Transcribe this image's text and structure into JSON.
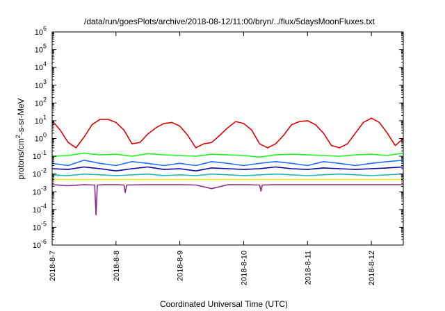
{
  "chart_data": {
    "type": "line",
    "title": "/data/run/goesPlots/archive/2018-08-12/11:00/bryn/../flux/5daysMoonFluxes.txt",
    "xlabel": "Coordinated Universal Time (UTC)",
    "ylabel": {
      "pre": "protons/cm",
      "sup": "2",
      "post": "-s-sr-MeV"
    },
    "yscale": "log",
    "ylim": [
      1e-06,
      1000000.0
    ],
    "y_ticks": [
      {
        "exp": "-6"
      },
      {
        "exp": "-5"
      },
      {
        "exp": "-4"
      },
      {
        "exp": "-3"
      },
      {
        "exp": "-2"
      },
      {
        "exp": "-1"
      },
      {
        "exp": "0"
      },
      {
        "exp": "1"
      },
      {
        "exp": "2"
      },
      {
        "exp": "3"
      },
      {
        "exp": "4"
      },
      {
        "exp": "5"
      },
      {
        "exp": "6"
      }
    ],
    "y_tick_base": "10",
    "xlim": [
      "2018-08-07T00:00",
      "2018-08-12T12:00"
    ],
    "x_ticks": [
      "2018-8-7",
      "2018-8-8",
      "2018-8-9",
      "2018-8-10",
      "2018-8-11",
      "2018-8-12"
    ],
    "grid": false,
    "legend": "none",
    "series": [
      {
        "color": "#e00000",
        "x": [
          "2018-08-07T00:00",
          "2018-08-07T03:00",
          "2018-08-07T06:00",
          "2018-08-07T09:00",
          "2018-08-07T12:00",
          "2018-08-07T15:00",
          "2018-08-07T18:00",
          "2018-08-07T21:00",
          "2018-08-08T00:00",
          "2018-08-08T03:00",
          "2018-08-08T06:00",
          "2018-08-08T09:00",
          "2018-08-08T12:00",
          "2018-08-08T15:00",
          "2018-08-08T18:00",
          "2018-08-08T21:00",
          "2018-08-09T00:00",
          "2018-08-09T03:00",
          "2018-08-09T06:00",
          "2018-08-09T09:00",
          "2018-08-09T12:00",
          "2018-08-09T15:00",
          "2018-08-09T18:00",
          "2018-08-09T21:00",
          "2018-08-10T00:00",
          "2018-08-10T03:00",
          "2018-08-10T06:00",
          "2018-08-10T09:00",
          "2018-08-10T12:00",
          "2018-08-10T15:00",
          "2018-08-10T18:00",
          "2018-08-10T21:00",
          "2018-08-11T00:00",
          "2018-08-11T03:00",
          "2018-08-11T06:00",
          "2018-08-11T09:00",
          "2018-08-11T12:00",
          "2018-08-11T15:00",
          "2018-08-11T18:00",
          "2018-08-11T21:00",
          "2018-08-12T00:00",
          "2018-08-12T03:00",
          "2018-08-12T06:00",
          "2018-08-12T09:00",
          "2018-08-12T12:00"
        ],
        "values": [
          10,
          3,
          0.6,
          0.3,
          1.2,
          6,
          12,
          12,
          8,
          3,
          0.5,
          0.6,
          1.8,
          4,
          7,
          8,
          5,
          1.5,
          0.3,
          0.5,
          0.6,
          1.5,
          4,
          9,
          7,
          3,
          0.5,
          0.3,
          0.5,
          1.5,
          6,
          9,
          10,
          6,
          2,
          0.4,
          0.3,
          0.5,
          2,
          8,
          14,
          8,
          2,
          0.4,
          1.0
        ]
      },
      {
        "color": "#22ee22",
        "x": [
          "2018-08-07T00:00",
          "2018-08-07T06:00",
          "2018-08-07T12:00",
          "2018-08-07T18:00",
          "2018-08-08T00:00",
          "2018-08-08T06:00",
          "2018-08-08T12:00",
          "2018-08-08T18:00",
          "2018-08-09T00:00",
          "2018-08-09T06:00",
          "2018-08-09T12:00",
          "2018-08-09T18:00",
          "2018-08-10T00:00",
          "2018-08-10T06:00",
          "2018-08-10T12:00",
          "2018-08-10T18:00",
          "2018-08-11T00:00",
          "2018-08-11T06:00",
          "2018-08-11T12:00",
          "2018-08-11T18:00",
          "2018-08-12T00:00",
          "2018-08-12T06:00",
          "2018-08-12T12:00"
        ],
        "values": [
          0.1,
          0.11,
          0.15,
          0.12,
          0.13,
          0.1,
          0.14,
          0.12,
          0.11,
          0.1,
          0.13,
          0.12,
          0.11,
          0.09,
          0.12,
          0.13,
          0.12,
          0.11,
          0.1,
          0.12,
          0.13,
          0.11,
          0.15
        ]
      },
      {
        "color": "#1e6fff",
        "x": [
          "2018-08-07T00:00",
          "2018-08-07T06:00",
          "2018-08-07T12:00",
          "2018-08-07T18:00",
          "2018-08-08T00:00",
          "2018-08-08T06:00",
          "2018-08-08T12:00",
          "2018-08-08T18:00",
          "2018-08-09T00:00",
          "2018-08-09T06:00",
          "2018-08-09T12:00",
          "2018-08-09T18:00",
          "2018-08-10T00:00",
          "2018-08-10T06:00",
          "2018-08-10T12:00",
          "2018-08-10T18:00",
          "2018-08-11T00:00",
          "2018-08-11T06:00",
          "2018-08-11T12:00",
          "2018-08-11T18:00",
          "2018-08-12T00:00",
          "2018-08-12T06:00",
          "2018-08-12T12:00"
        ],
        "values": [
          0.04,
          0.03,
          0.06,
          0.04,
          0.03,
          0.05,
          0.04,
          0.03,
          0.04,
          0.03,
          0.05,
          0.04,
          0.03,
          0.04,
          0.05,
          0.04,
          0.03,
          0.05,
          0.04,
          0.03,
          0.04,
          0.05,
          0.06
        ]
      },
      {
        "color": "#0000aa",
        "x": [
          "2018-08-07T00:00",
          "2018-08-07T06:00",
          "2018-08-07T12:00",
          "2018-08-07T18:00",
          "2018-08-08T00:00",
          "2018-08-08T06:00",
          "2018-08-08T12:00",
          "2018-08-08T18:00",
          "2018-08-09T00:00",
          "2018-08-09T06:00",
          "2018-08-09T12:00",
          "2018-08-09T18:00",
          "2018-08-10T00:00",
          "2018-08-10T06:00",
          "2018-08-10T12:00",
          "2018-08-10T18:00",
          "2018-08-11T00:00",
          "2018-08-11T06:00",
          "2018-08-11T12:00",
          "2018-08-11T18:00",
          "2018-08-12T00:00",
          "2018-08-12T06:00",
          "2018-08-12T12:00"
        ],
        "values": [
          0.02,
          0.018,
          0.025,
          0.02,
          0.015,
          0.02,
          0.025,
          0.018,
          0.02,
          0.015,
          0.022,
          0.02,
          0.018,
          0.02,
          0.025,
          0.02,
          0.018,
          0.022,
          0.02,
          0.018,
          0.02,
          0.022,
          0.025
        ]
      },
      {
        "color": "#20b8b8",
        "x": [
          "2018-08-07T00:00",
          "2018-08-07T06:00",
          "2018-08-07T12:00",
          "2018-08-07T18:00",
          "2018-08-08T00:00",
          "2018-08-08T06:00",
          "2018-08-08T12:00",
          "2018-08-08T18:00",
          "2018-08-09T00:00",
          "2018-08-09T06:00",
          "2018-08-09T12:00",
          "2018-08-09T18:00",
          "2018-08-10T00:00",
          "2018-08-10T06:00",
          "2018-08-10T12:00",
          "2018-08-10T18:00",
          "2018-08-11T00:00",
          "2018-08-11T06:00",
          "2018-08-11T12:00",
          "2018-08-11T18:00",
          "2018-08-12T00:00",
          "2018-08-12T06:00",
          "2018-08-12T12:00"
        ],
        "values": [
          0.009,
          0.008,
          0.01,
          0.009,
          0.008,
          0.009,
          0.01,
          0.008,
          0.009,
          0.008,
          0.01,
          0.009,
          0.008,
          0.009,
          0.01,
          0.009,
          0.008,
          0.009,
          0.01,
          0.009,
          0.008,
          0.009,
          0.01
        ]
      },
      {
        "color": "#eeee00",
        "x": [
          "2018-08-07T00:00",
          "2018-08-08T00:00",
          "2018-08-09T00:00",
          "2018-08-10T00:00",
          "2018-08-11T00:00",
          "2018-08-12T00:00",
          "2018-08-12T12:00"
        ],
        "values": [
          0.005,
          0.005,
          0.005,
          0.005,
          0.005,
          0.005,
          0.005
        ]
      },
      {
        "color": "#8a2a7a",
        "x": [
          "2018-08-07T00:00",
          "2018-08-07T06:00",
          "2018-08-07T12:00",
          "2018-08-07T16:00",
          "2018-08-07T16:30",
          "2018-08-07T17:00",
          "2018-08-07T20:00",
          "2018-08-08T00:00",
          "2018-08-08T03:00",
          "2018-08-08T03:30",
          "2018-08-08T04:00",
          "2018-08-08T12:00",
          "2018-08-09T00:00",
          "2018-08-09T06:00",
          "2018-08-09T12:00",
          "2018-08-09T18:00",
          "2018-08-10T00:00",
          "2018-08-10T06:00",
          "2018-08-10T06:30",
          "2018-08-10T07:00",
          "2018-08-10T12:00",
          "2018-08-11T00:00",
          "2018-08-11T12:00",
          "2018-08-12T00:00",
          "2018-08-12T12:00"
        ],
        "values": [
          0.0025,
          0.0022,
          0.0025,
          0.0024,
          5e-05,
          0.0024,
          0.0025,
          0.0025,
          0.0024,
          0.0009,
          0.0024,
          0.0025,
          0.0025,
          0.0024,
          0.0015,
          0.0025,
          0.0025,
          0.0024,
          0.0011,
          0.0024,
          0.0025,
          0.0025,
          0.0025,
          0.0025,
          0.0025
        ]
      }
    ]
  }
}
